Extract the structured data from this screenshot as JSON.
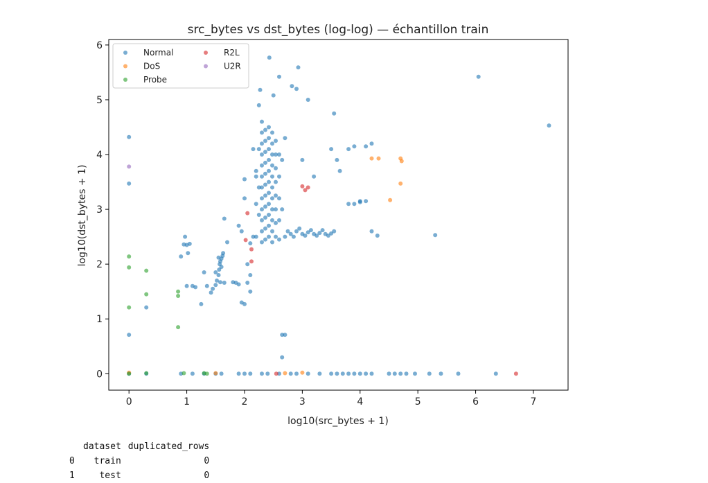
{
  "chart_data": {
    "type": "scatter",
    "title": "src_bytes vs dst_bytes (log-log) — échantillon train",
    "xlabel": "log10(src_bytes + 1)",
    "ylabel": "log10(dst_bytes + 1)",
    "xlim": [
      -0.35,
      7.6
    ],
    "ylim": [
      -0.3,
      6.1
    ],
    "xticks": [
      "0",
      "1",
      "2",
      "3",
      "4",
      "5",
      "6",
      "7"
    ],
    "yticks": [
      "0",
      "1",
      "2",
      "3",
      "4",
      "5",
      "6"
    ],
    "grid": false,
    "legend_position": "top-left",
    "series": [
      {
        "name": "Normal",
        "color": "#1f77b4",
        "points": [
          [
            0,
            4.32
          ],
          [
            0,
            3.47
          ],
          [
            0,
            0.71
          ],
          [
            0,
            0
          ],
          [
            0.3,
            1.21
          ],
          [
            0.3,
            0
          ],
          [
            0.9,
            2.14
          ],
          [
            0.95,
            2.36
          ],
          [
            0.97,
            2.5
          ],
          [
            1.0,
            2.35
          ],
          [
            1.02,
            2.2
          ],
          [
            1.05,
            2.37
          ],
          [
            1.0,
            1.6
          ],
          [
            1.1,
            1.6
          ],
          [
            1.15,
            1.58
          ],
          [
            1.25,
            1.27
          ],
          [
            1.3,
            1.85
          ],
          [
            1.35,
            1.6
          ],
          [
            1.42,
            1.48
          ],
          [
            1.45,
            1.55
          ],
          [
            1.5,
            1.62
          ],
          [
            1.52,
            1.7
          ],
          [
            1.55,
            1.8
          ],
          [
            1.56,
            1.9
          ],
          [
            1.57,
            2.0
          ],
          [
            1.58,
            2.05
          ],
          [
            1.6,
            2.1
          ],
          [
            1.62,
            2.15
          ],
          [
            1.63,
            2.2
          ],
          [
            1.55,
            2.12
          ],
          [
            1.6,
            1.95
          ],
          [
            1.5,
            1.85
          ],
          [
            1.65,
            1.66
          ],
          [
            1.58,
            1.67
          ],
          [
            1.8,
            1.67
          ],
          [
            1.85,
            1.66
          ],
          [
            1.9,
            1.63
          ],
          [
            1.95,
            1.3
          ],
          [
            2.0,
            1.27
          ],
          [
            2.05,
            1.66
          ],
          [
            2.1,
            1.5
          ],
          [
            1.9,
            2.7
          ],
          [
            1.95,
            2.6
          ],
          [
            2.05,
            2.0
          ],
          [
            2.1,
            1.8
          ],
          [
            2.1,
            2.38
          ],
          [
            2.15,
            2.5
          ],
          [
            1.65,
            2.83
          ],
          [
            1.7,
            2.4
          ],
          [
            2.0,
            3.55
          ],
          [
            2.0,
            3.2
          ],
          [
            2.2,
            3.7
          ],
          [
            2.15,
            4.1
          ],
          [
            2.25,
            4.9
          ],
          [
            2.27,
            5.18
          ],
          [
            2.43,
            5.77
          ],
          [
            2.5,
            5.08
          ],
          [
            2.6,
            5.42
          ],
          [
            2.82,
            5.25
          ],
          [
            2.9,
            5.2
          ],
          [
            2.93,
            5.59
          ],
          [
            3.1,
            5.0
          ],
          [
            3.55,
            4.75
          ],
          [
            2.3,
            2.4
          ],
          [
            2.3,
            2.6
          ],
          [
            2.3,
            2.8
          ],
          [
            2.3,
            3.0
          ],
          [
            2.3,
            3.2
          ],
          [
            2.3,
            3.4
          ],
          [
            2.3,
            3.6
          ],
          [
            2.3,
            3.8
          ],
          [
            2.3,
            4.0
          ],
          [
            2.3,
            4.2
          ],
          [
            2.3,
            4.4
          ],
          [
            2.3,
            4.6
          ],
          [
            2.36,
            2.45
          ],
          [
            2.36,
            2.65
          ],
          [
            2.36,
            2.85
          ],
          [
            2.36,
            3.05
          ],
          [
            2.36,
            3.25
          ],
          [
            2.36,
            3.45
          ],
          [
            2.36,
            3.65
          ],
          [
            2.36,
            3.85
          ],
          [
            2.36,
            4.05
          ],
          [
            2.36,
            4.25
          ],
          [
            2.36,
            4.45
          ],
          [
            2.42,
            2.5
          ],
          [
            2.42,
            2.7
          ],
          [
            2.42,
            2.9
          ],
          [
            2.42,
            3.1
          ],
          [
            2.42,
            3.3
          ],
          [
            2.42,
            3.5
          ],
          [
            2.42,
            3.7
          ],
          [
            2.42,
            3.9
          ],
          [
            2.42,
            4.1
          ],
          [
            2.42,
            4.3
          ],
          [
            2.42,
            4.5
          ],
          [
            2.48,
            2.4
          ],
          [
            2.48,
            2.6
          ],
          [
            2.48,
            2.8
          ],
          [
            2.48,
            3.0
          ],
          [
            2.48,
            3.2
          ],
          [
            2.48,
            3.4
          ],
          [
            2.48,
            3.6
          ],
          [
            2.48,
            3.8
          ],
          [
            2.48,
            4.0
          ],
          [
            2.48,
            4.2
          ],
          [
            2.48,
            4.4
          ],
          [
            2.54,
            2.5
          ],
          [
            2.54,
            2.75
          ],
          [
            2.54,
            3.0
          ],
          [
            2.54,
            3.25
          ],
          [
            2.54,
            3.5
          ],
          [
            2.54,
            3.75
          ],
          [
            2.54,
            4.0
          ],
          [
            2.54,
            4.25
          ],
          [
            2.6,
            2.45
          ],
          [
            2.6,
            2.8
          ],
          [
            2.6,
            3.2
          ],
          [
            2.6,
            3.6
          ],
          [
            2.6,
            4.0
          ],
          [
            2.2,
            2.5
          ],
          [
            2.2,
            3.1
          ],
          [
            2.2,
            3.6
          ],
          [
            2.25,
            2.9
          ],
          [
            2.25,
            3.4
          ],
          [
            2.25,
            4.1
          ],
          [
            2.65,
            3.0
          ],
          [
            2.65,
            3.9
          ],
          [
            2.7,
            4.3
          ],
          [
            2.7,
            2.5
          ],
          [
            2.8,
            2.55
          ],
          [
            2.9,
            2.6
          ],
          [
            3.0,
            2.55
          ],
          [
            3.1,
            2.58
          ],
          [
            3.2,
            2.55
          ],
          [
            3.3,
            2.57
          ],
          [
            3.4,
            2.55
          ],
          [
            3.5,
            2.56
          ],
          [
            2.75,
            2.6
          ],
          [
            2.85,
            2.5
          ],
          [
            2.95,
            2.65
          ],
          [
            3.05,
            2.52
          ],
          [
            3.15,
            2.62
          ],
          [
            3.25,
            2.52
          ],
          [
            3.35,
            2.62
          ],
          [
            3.45,
            2.52
          ],
          [
            3.55,
            2.6
          ],
          [
            2.65,
            0.71
          ],
          [
            2.7,
            0.71
          ],
          [
            2.65,
            0.3
          ],
          [
            3.5,
            4.1
          ],
          [
            3.6,
            3.9
          ],
          [
            3.65,
            3.7
          ],
          [
            3.8,
            4.1
          ],
          [
            3.9,
            4.15
          ],
          [
            4.1,
            4.15
          ],
          [
            4.2,
            4.2
          ],
          [
            3.8,
            3.1
          ],
          [
            3.9,
            3.1
          ],
          [
            4.0,
            3.13
          ],
          [
            4.1,
            3.15
          ],
          [
            4.0,
            3.15
          ],
          [
            4.2,
            2.6
          ],
          [
            4.3,
            2.52
          ],
          [
            3.2,
            3.6
          ],
          [
            3.0,
            3.9
          ],
          [
            5.3,
            2.53
          ],
          [
            6.05,
            5.42
          ],
          [
            7.27,
            4.53
          ],
          [
            0.9,
            0
          ],
          [
            1.1,
            0
          ],
          [
            1.3,
            0
          ],
          [
            1.5,
            0
          ],
          [
            1.6,
            0
          ],
          [
            1.9,
            0
          ],
          [
            2.0,
            0
          ],
          [
            2.1,
            0
          ],
          [
            2.3,
            0
          ],
          [
            2.4,
            0
          ],
          [
            2.6,
            0
          ],
          [
            2.8,
            0
          ],
          [
            2.9,
            0
          ],
          [
            3.1,
            0
          ],
          [
            3.3,
            0
          ],
          [
            3.5,
            0
          ],
          [
            3.6,
            0
          ],
          [
            3.7,
            0
          ],
          [
            3.8,
            0
          ],
          [
            3.9,
            0
          ],
          [
            4.0,
            0
          ],
          [
            4.1,
            0
          ],
          [
            4.2,
            0
          ],
          [
            4.5,
            0
          ],
          [
            4.6,
            0
          ],
          [
            4.7,
            0
          ],
          [
            4.8,
            0
          ],
          [
            4.95,
            0
          ],
          [
            5.2,
            0
          ],
          [
            5.4,
            0
          ],
          [
            5.7,
            0
          ],
          [
            6.35,
            0
          ]
        ]
      },
      {
        "name": "DoS",
        "color": "#ff7f0e",
        "points": [
          [
            0,
            0.02
          ],
          [
            1.5,
            0.01
          ],
          [
            2.7,
            0.01
          ],
          [
            3.0,
            0.02
          ],
          [
            4.2,
            3.93
          ],
          [
            4.32,
            3.93
          ],
          [
            4.7,
            3.93
          ],
          [
            4.72,
            3.88
          ],
          [
            4.7,
            3.47
          ],
          [
            4.52,
            3.17
          ]
        ]
      },
      {
        "name": "Probe",
        "color": "#2ca02c",
        "points": [
          [
            0,
            2.14
          ],
          [
            0,
            1.94
          ],
          [
            0,
            1.21
          ],
          [
            0,
            0
          ],
          [
            0.3,
            1.88
          ],
          [
            0.3,
            1.45
          ],
          [
            0.3,
            0.01
          ],
          [
            0.85,
            1.5
          ],
          [
            0.85,
            1.42
          ],
          [
            0.85,
            0.85
          ],
          [
            0.95,
            0.01
          ],
          [
            1.3,
            0.01
          ],
          [
            1.35,
            0
          ]
        ]
      },
      {
        "name": "R2L",
        "color": "#d62728",
        "points": [
          [
            2.05,
            2.93
          ],
          [
            2.02,
            2.44
          ],
          [
            2.12,
            2.27
          ],
          [
            2.12,
            2.05
          ],
          [
            2.55,
            0
          ],
          [
            6.7,
            0
          ],
          [
            3.0,
            3.42
          ],
          [
            3.05,
            3.35
          ],
          [
            3.1,
            3.4
          ]
        ]
      },
      {
        "name": "U2R",
        "color": "#9467bd",
        "points": [
          [
            0,
            3.78
          ]
        ]
      }
    ]
  },
  "table": {
    "columns": [
      "dataset",
      "duplicated_rows"
    ],
    "rows": [
      {
        "index": "0",
        "dataset": "train",
        "duplicated_rows": "0"
      },
      {
        "index": "1",
        "dataset": "test",
        "duplicated_rows": "0"
      }
    ]
  }
}
